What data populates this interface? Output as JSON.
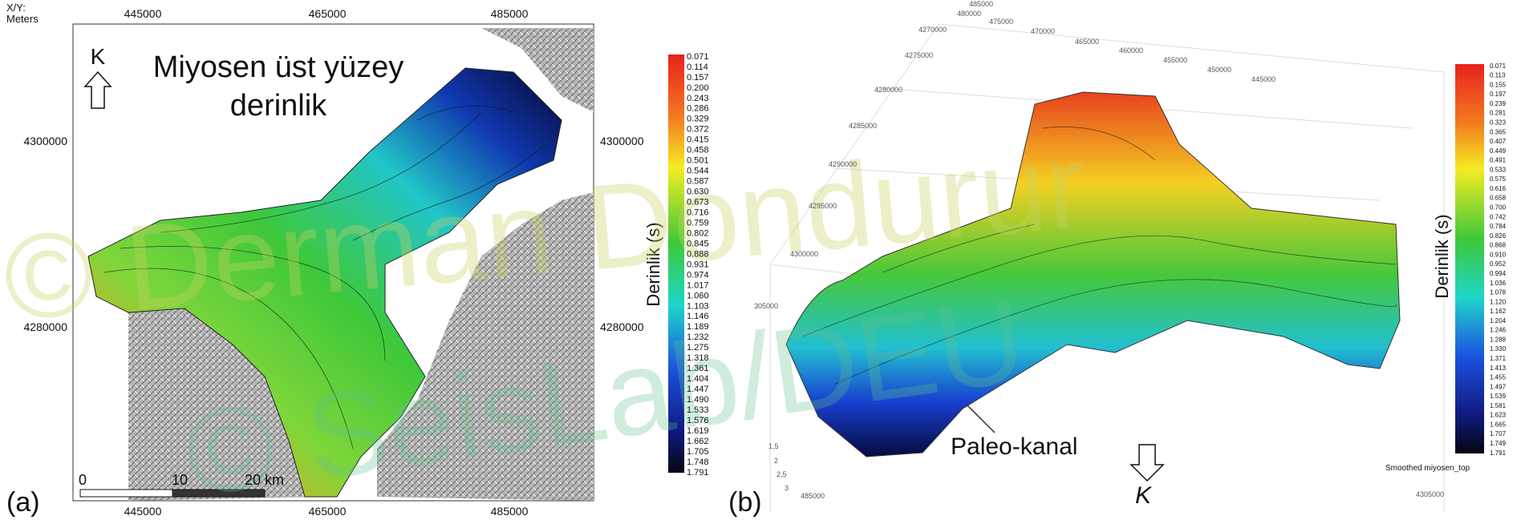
{
  "panel_a": {
    "tag": "(a)",
    "xy_label": "X/Y:",
    "xy_unit": "Meters",
    "title_line1": "Miyosen  üst yüzey",
    "title_line2": "derinlik",
    "north": "K",
    "x_ticks": [
      "445000",
      "465000",
      "485000"
    ],
    "y_ticks": [
      "4300000",
      "4280000"
    ],
    "scale_bar": [
      "0",
      "10",
      "20 km"
    ],
    "colorbar_title": "Derinlik (s)",
    "colorbar_labels": [
      "0.071",
      "0.114",
      "0.157",
      "0.200",
      "0.243",
      "0.286",
      "0.329",
      "0.372",
      "0.415",
      "0.458",
      "0.501",
      "0.544",
      "0.587",
      "0.630",
      "0.673",
      "0.716",
      "0.759",
      "0.802",
      "0.845",
      "0.888",
      "0.931",
      "0.974",
      "1.017",
      "1.060",
      "1.103",
      "1.146",
      "1.189",
      "1.232",
      "1.275",
      "1.318",
      "1.361",
      "1.404",
      "1.447",
      "1.490",
      "1.533",
      "1.576",
      "1.619",
      "1.662",
      "1.705",
      "1.748",
      "1.791"
    ]
  },
  "panel_b": {
    "tag": "(b)",
    "north": "K",
    "annotation": "Paleo-kanal",
    "colorbar_title": "Derinlik (s)",
    "surface_name": "Smoothed miyosen_top",
    "axis_labels": [
      "485000",
      "480000",
      "475000",
      "470000",
      "465000",
      "460000",
      "455000",
      "450000",
      "445000",
      "4270000",
      "4275000",
      "4280000",
      "4285000",
      "4290000",
      "4295000",
      "4300000",
      "305000",
      "1,5",
      "2",
      "2,5",
      "3",
      "485000",
      "4305000"
    ],
    "colorbar_labels": [
      "0.071",
      "0.113",
      "0.155",
      "0.197",
      "0.239",
      "0.281",
      "0.323",
      "0.365",
      "0.407",
      "0.449",
      "0.491",
      "0.533",
      "0.575",
      "0.616",
      "0.658",
      "0.700",
      "0.742",
      "0.784",
      "0.826",
      "0.868",
      "0.910",
      "0.952",
      "0.994",
      "1.036",
      "1.078",
      "1.120",
      "1.162",
      "1.204",
      "1.246",
      "1.288",
      "1.330",
      "1.371",
      "1.413",
      "1.455",
      "1.497",
      "1.539",
      "1.581",
      "1.623",
      "1.665",
      "1.707",
      "1.749",
      "1.791"
    ]
  },
  "watermark": {
    "line1": "© Derman Dondurur",
    "line2": "© SeisLab/DEU"
  }
}
